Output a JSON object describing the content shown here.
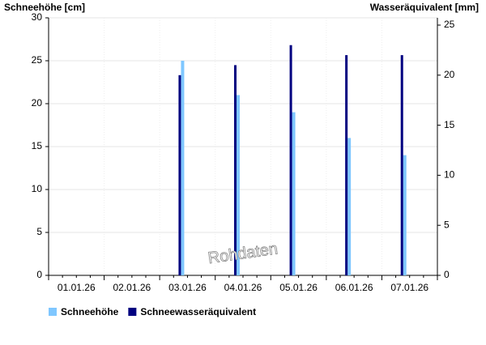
{
  "chart_data": {
    "type": "bar",
    "y_label": "Schneehöhe [cm]",
    "y2_label": "Wasseräquivalent [mm]",
    "annotation": "Rohdaten",
    "categories": [
      "01.01.26",
      "02.01.26",
      "03.01.26",
      "04.01.26",
      "05.01.26",
      "06.01.26",
      "07.01.26"
    ],
    "series": [
      {
        "name": "Schneehöhe",
        "color": "#7fc7ff",
        "values": [
          null,
          null,
          25,
          21,
          19,
          16,
          14
        ]
      },
      {
        "name": "Schneewasseräquivalent",
        "color": "#000080",
        "axis": "y2",
        "values": [
          null,
          null,
          20,
          21,
          23,
          22,
          22
        ]
      }
    ],
    "ylim": [
      0,
      30
    ],
    "yticks": [
      0,
      5,
      10,
      15,
      20,
      25,
      30
    ],
    "y2lim": [
      0,
      25
    ],
    "y2ticks": [
      0,
      5,
      10,
      15,
      20,
      25
    ],
    "grid": true
  }
}
